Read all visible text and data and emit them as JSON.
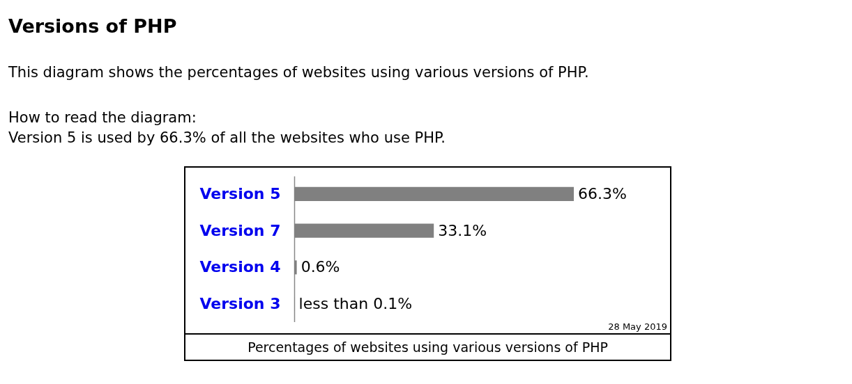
{
  "chart_data": {
    "type": "bar",
    "orientation": "horizontal",
    "title": "Versions of PHP",
    "subtitle": "This diagram shows the percentages of websites using various versions of PHP.",
    "annotations": [
      "How to read the diagram:",
      "Version 5 is used by 66.3% of all the websites who use PHP.",
      "28 May 2019"
    ],
    "xlabel": "Percentages of websites using various versions of PHP",
    "categories": [
      "Version 5",
      "Version 7",
      "Version 4",
      "Version 3"
    ],
    "values": [
      66.3,
      33.1,
      0.6,
      0.1
    ],
    "value_labels": [
      "66.3%",
      "33.1%",
      "0.6%",
      "less than 0.1%"
    ],
    "color": "#808080",
    "grid": false
  }
}
